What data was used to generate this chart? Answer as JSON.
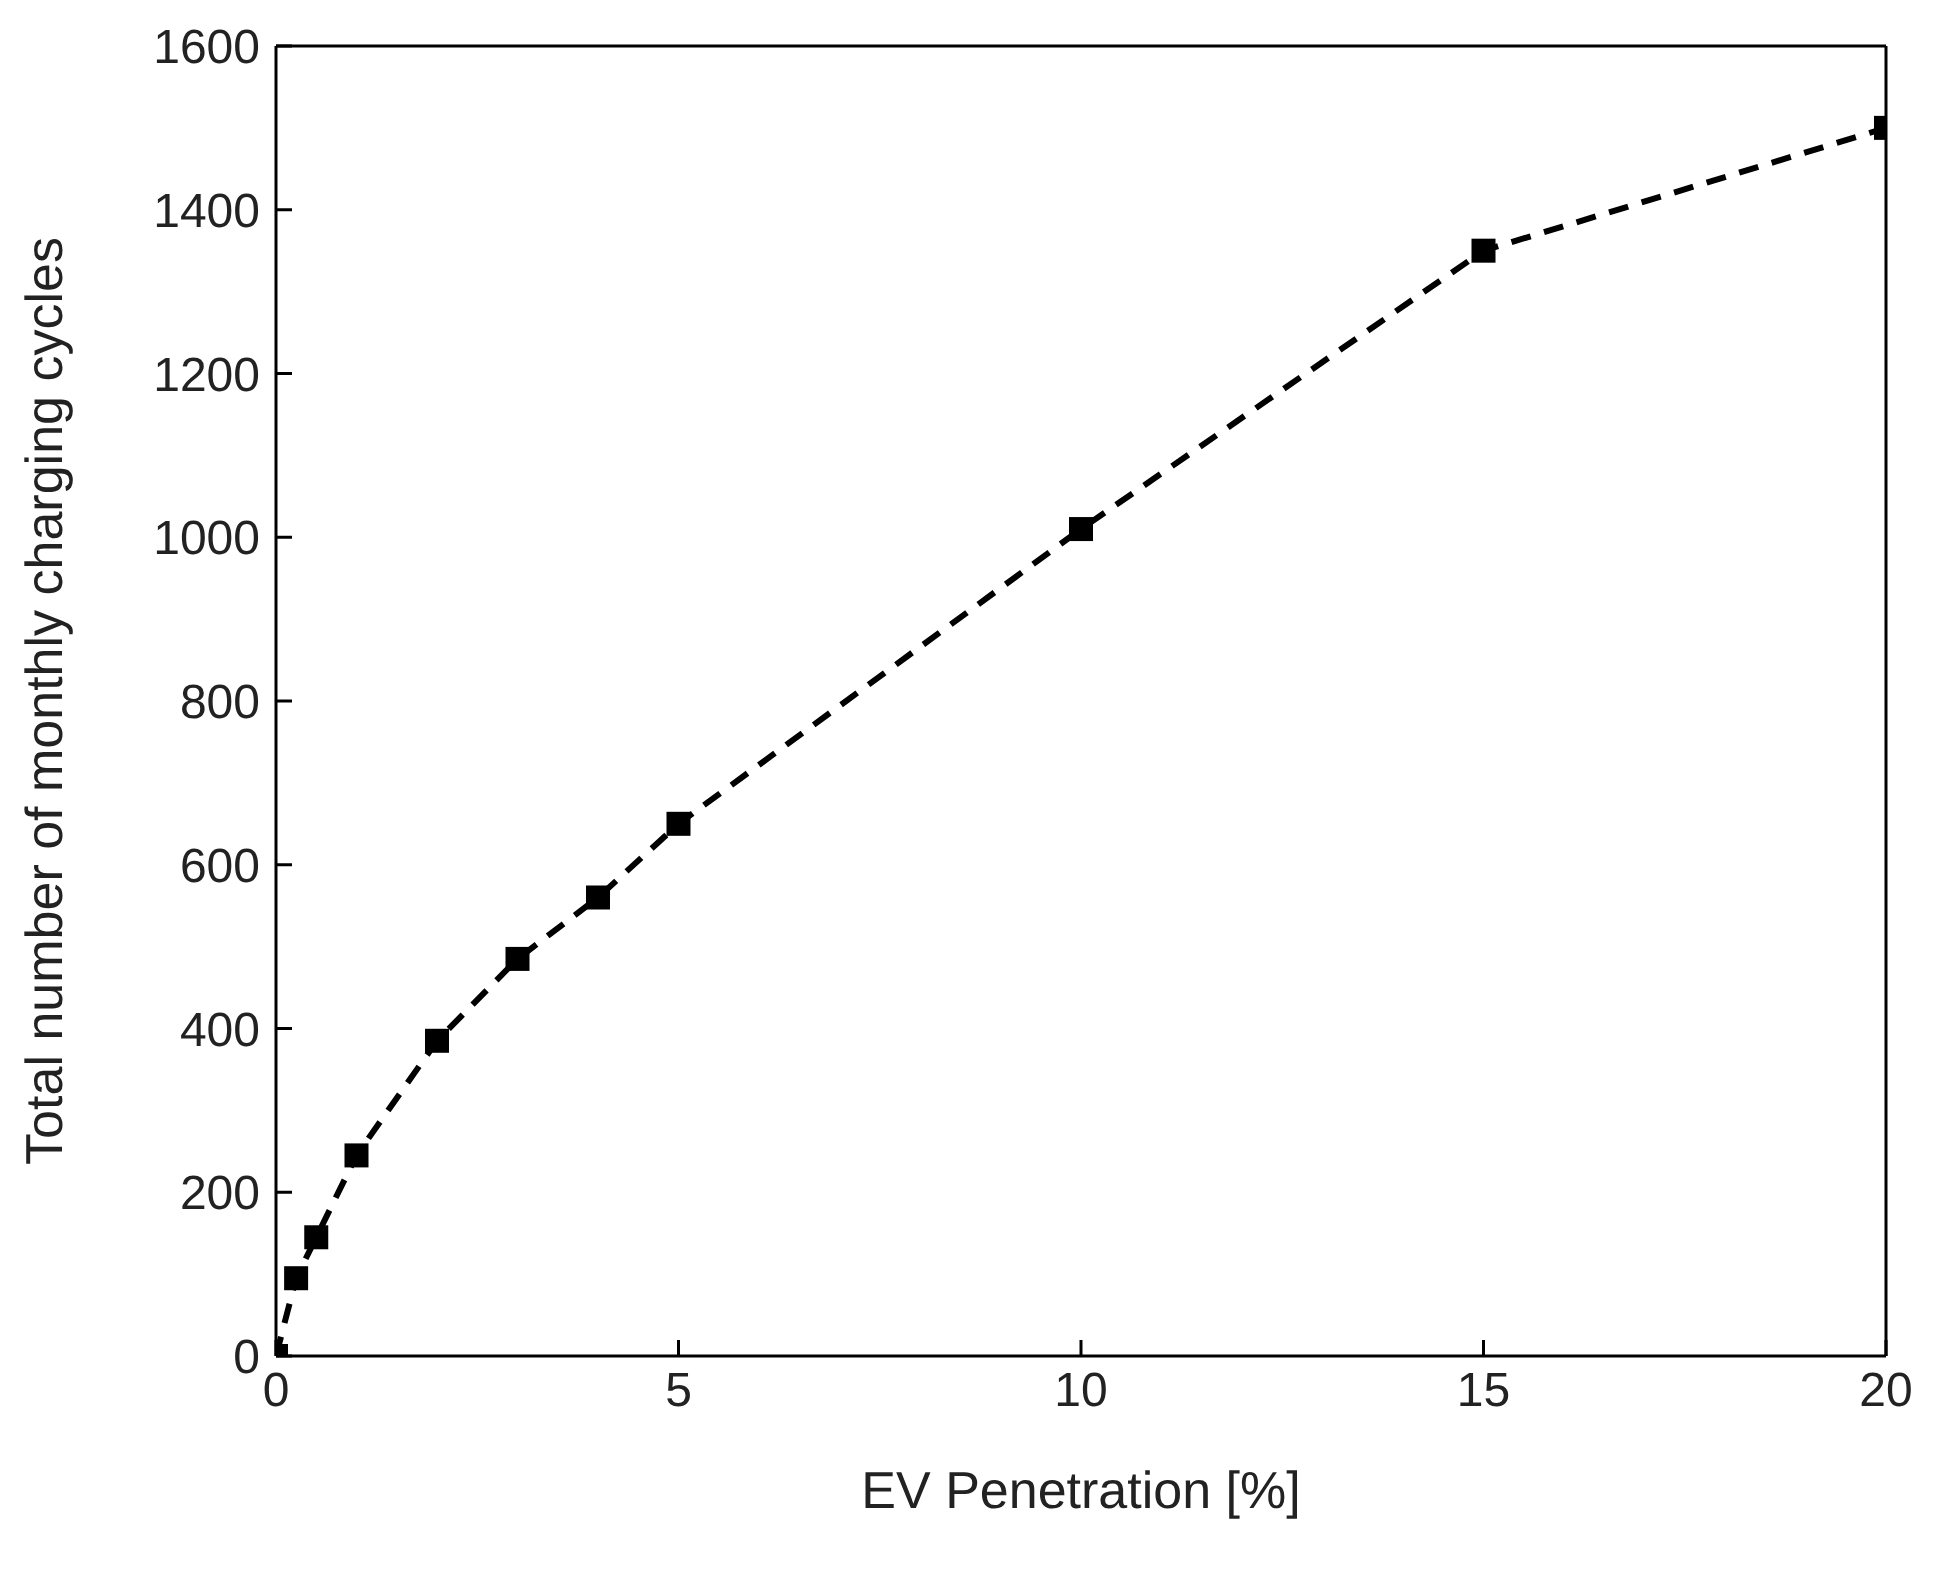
{
  "chart_data": {
    "type": "line",
    "xlabel": "EV Penetration [%]",
    "ylabel": "Total number of monthly charging cycles",
    "x": [
      0,
      0.25,
      0.5,
      1,
      2,
      3,
      4,
      5,
      10,
      15,
      20
    ],
    "series": [
      {
        "color": "#000000",
        "values": [
          0,
          95,
          145,
          245,
          385,
          485,
          560,
          650,
          1010,
          1350,
          1500
        ]
      }
    ],
    "xlim": [
      0,
      20
    ],
    "xticks": [
      0,
      5,
      10,
      15,
      20
    ],
    "ylim": [
      0,
      1600
    ],
    "yticks": [
      0,
      200,
      400,
      600,
      800,
      1000,
      1200,
      1400,
      1600
    ],
    "grid": false,
    "marker": "square",
    "line_style": "dashed"
  }
}
